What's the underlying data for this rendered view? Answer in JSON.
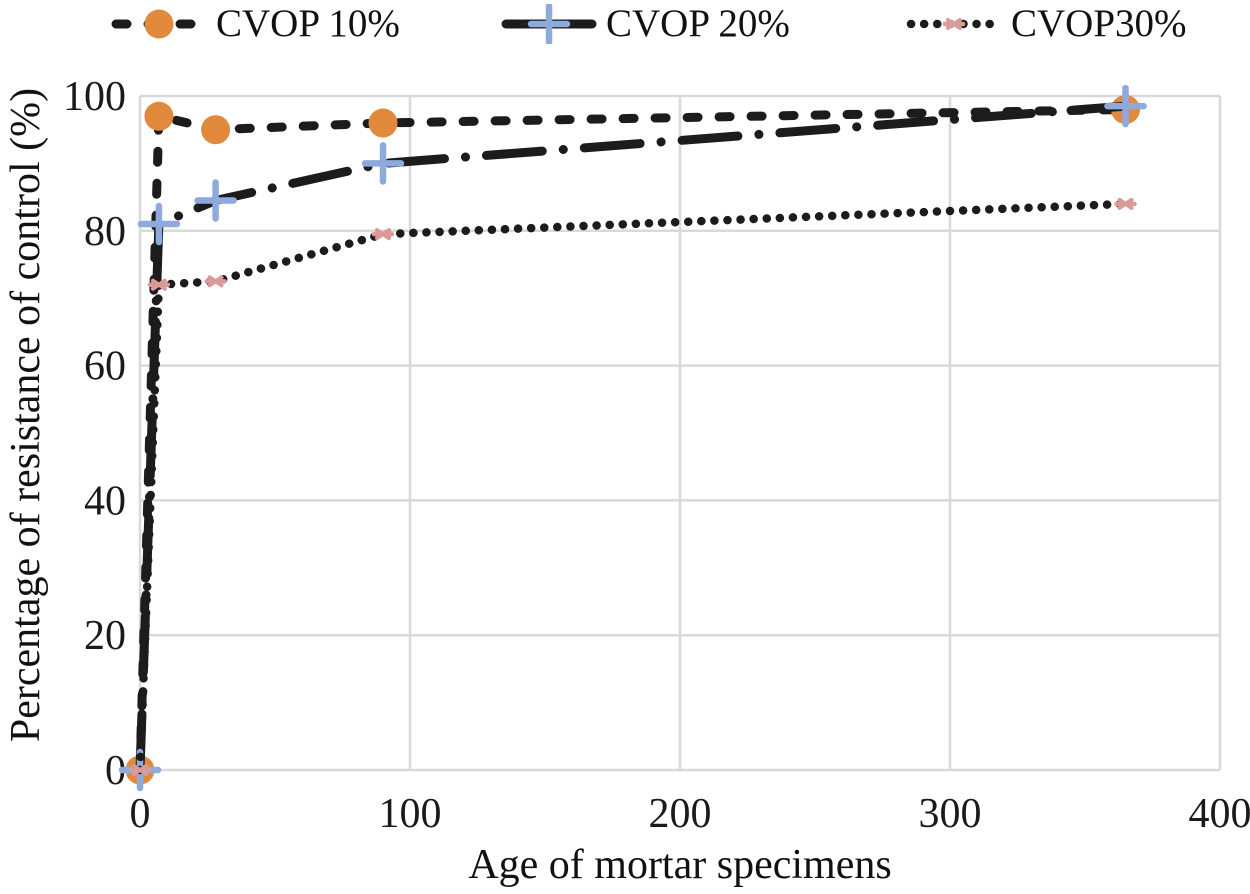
{
  "chart_data": {
    "type": "line",
    "x": [
      0,
      7,
      28,
      90,
      365
    ],
    "series": [
      {
        "name": "CVOP 10%",
        "values": [
          0,
          97,
          95,
          96,
          98
        ],
        "line_style": "dashed",
        "marker": "circle",
        "marker_color": "#E1893C"
      },
      {
        "name": "CVOP 20%",
        "values": [
          0,
          81,
          84.5,
          90,
          98.5
        ],
        "line_style": "dash-dot",
        "marker": "plus",
        "marker_color": "#8EA9DB"
      },
      {
        "name": "CVOP30%",
        "values": [
          0,
          72,
          72.5,
          79.5,
          84
        ],
        "line_style": "dotted",
        "marker": "asterisk",
        "marker_color": "#D99A98"
      }
    ],
    "xlabel": "Age of mortar specimens",
    "ylabel": "Percentage of resistance of control (%)",
    "xlim": [
      0,
      400
    ],
    "ylim": [
      0,
      100
    ],
    "xticks": [
      0,
      100,
      200,
      300,
      400
    ],
    "yticks": [
      0,
      20,
      40,
      60,
      80,
      100
    ],
    "grid": true,
    "legend_position": "top",
    "line_color": "#1C1C1C",
    "grid_color": "#D9D9D9"
  }
}
